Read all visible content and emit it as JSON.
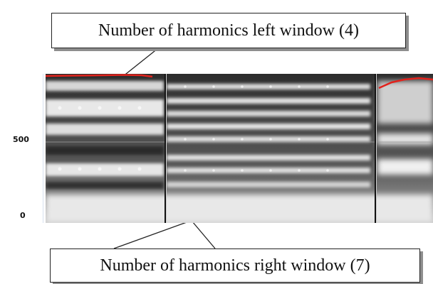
{
  "callouts": {
    "left": "Number of harmonics left window (4)",
    "right": "Number of harmonics right window (7)"
  },
  "axis": {
    "ticks": [
      "500",
      "0"
    ]
  },
  "colors": {
    "pitch_track": "#e2221c",
    "window_divider": "#111111",
    "callout_shadow": "#8e8e8e"
  }
}
